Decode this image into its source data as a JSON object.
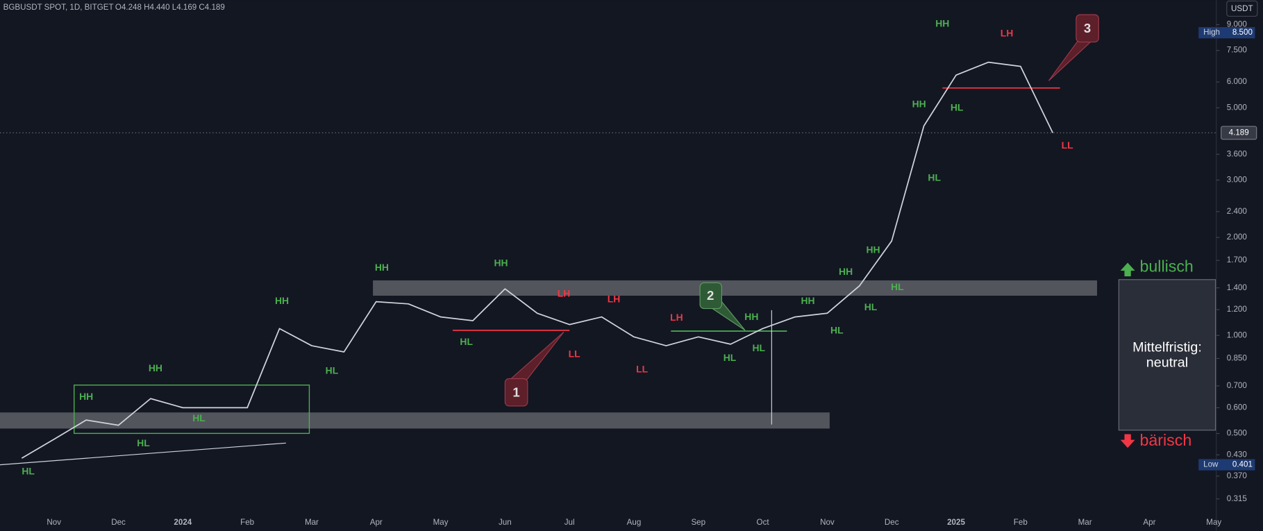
{
  "chart_data": {
    "type": "line",
    "title": "BGBUSDT SPOT, 1D, BITGET",
    "subtitle": "O4.248 H4.440 L4.169 C4.189",
    "currency": "USDT",
    "log_scale": true,
    "grid": false,
    "color": "#d1d4dc",
    "categories": [
      null,
      "Nov",
      null,
      "Dec",
      null,
      "2024",
      null,
      "Feb",
      null,
      "Mar",
      null,
      "Apr",
      null,
      "May",
      null,
      "Jun",
      null,
      "Jul",
      null,
      "Aug",
      null,
      "Sep",
      null,
      "Oct",
      null,
      "Nov",
      null,
      "Dec",
      null,
      "2025",
      null,
      "Feb",
      null,
      "Mar",
      null,
      "Apr",
      null,
      "May"
    ],
    "values": [
      0.42,
      0.48,
      0.55,
      0.53,
      0.64,
      0.6,
      0.6,
      0.6,
      1.05,
      0.93,
      0.89,
      1.27,
      1.25,
      1.14,
      1.11,
      1.39,
      1.17,
      1.08,
      1.14,
      0.99,
      0.93,
      0.99,
      0.94,
      1.05,
      1.14,
      1.17,
      1.42,
      1.95,
      4.4,
      6.3,
      6.9,
      6.7,
      4.189,
      null,
      null,
      null,
      null,
      null
    ],
    "ylim": [
      0.28,
      10.7
    ],
    "yticks": [
      {
        "value": 9,
        "label": "9.000"
      },
      {
        "value": 7.5,
        "label": "7.500"
      },
      {
        "value": 6,
        "label": "6.000"
      },
      {
        "value": 5,
        "label": "5.000"
      },
      {
        "value": 3.6,
        "label": "3.600"
      },
      {
        "value": 3,
        "label": "3.000"
      },
      {
        "value": 2.4,
        "label": "2.400"
      },
      {
        "value": 2,
        "label": "2.000"
      },
      {
        "value": 1.7,
        "label": "1.700"
      },
      {
        "value": 1.4,
        "label": "1.400"
      },
      {
        "value": 1.2,
        "label": "1.200"
      },
      {
        "value": 1,
        "label": "1.000"
      },
      {
        "value": 0.85,
        "label": "0.850"
      },
      {
        "value": 0.7,
        "label": "0.700"
      },
      {
        "value": 0.6,
        "label": "0.600"
      },
      {
        "value": 0.5,
        "label": "0.500"
      },
      {
        "value": 0.43,
        "label": "0.430"
      },
      {
        "value": 0.37,
        "label": "0.370"
      },
      {
        "value": 0.315,
        "label": "0.315"
      }
    ],
    "price_markers": [
      {
        "name": "High",
        "value": 8.5,
        "label": "8.500",
        "color": "#1e3a72"
      },
      {
        "name": "Low",
        "value": 0.401,
        "label": "0.401",
        "color": "#1e3a72"
      }
    ],
    "last_price": {
      "value": 4.189,
      "label": "4.189"
    },
    "annotations": [
      {
        "text": "HL",
        "color": "#4caf50"
      },
      {
        "text": "HH",
        "color": "#4caf50"
      },
      {
        "text": "HH",
        "color": "#4caf50"
      },
      {
        "text": "HL",
        "color": "#4caf50"
      },
      {
        "text": "HL",
        "color": "#4caf50"
      },
      {
        "text": "HH",
        "color": "#4caf50"
      },
      {
        "text": "HL",
        "color": "#4caf50"
      },
      {
        "text": "HH",
        "color": "#4caf50"
      },
      {
        "text": "HH",
        "color": "#4caf50"
      },
      {
        "text": "HL",
        "color": "#4caf50"
      },
      {
        "text": "LH",
        "color": "#f23645"
      },
      {
        "text": "LL",
        "color": "#f23645"
      },
      {
        "text": "LH",
        "color": "#f23645"
      },
      {
        "text": "LL",
        "color": "#f23645"
      },
      {
        "text": "LH",
        "color": "#f23645"
      },
      {
        "text": "HH",
        "color": "#4caf50"
      },
      {
        "text": "HL",
        "color": "#4caf50"
      },
      {
        "text": "HL",
        "color": "#4caf50"
      },
      {
        "text": "HH",
        "color": "#4caf50"
      },
      {
        "text": "HL",
        "color": "#4caf50"
      },
      {
        "text": "HH",
        "color": "#4caf50"
      },
      {
        "text": "HH",
        "color": "#4caf50"
      },
      {
        "text": "HL",
        "color": "#4caf50"
      },
      {
        "text": "HL",
        "color": "#4caf50"
      },
      {
        "text": "HH",
        "color": "#4caf50"
      },
      {
        "text": "HL",
        "color": "#4caf50"
      },
      {
        "text": "HL",
        "color": "#4caf50"
      },
      {
        "text": "HH",
        "color": "#4caf50"
      },
      {
        "text": "LH",
        "color": "#f23645"
      },
      {
        "text": "LL",
        "color": "#f23645"
      }
    ],
    "callouts": [
      "1",
      "2",
      "3"
    ],
    "panel": {
      "top": "bullisch",
      "title": "Mittelfristig:",
      "subtitle": "neutral",
      "bottom": "bärisch"
    }
  }
}
